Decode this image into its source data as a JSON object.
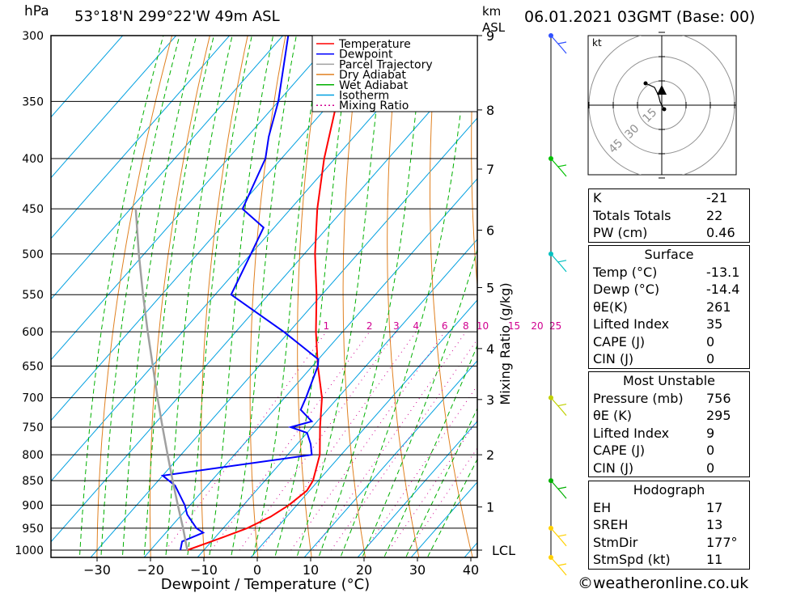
{
  "header": {
    "pressure_unit": "hPa",
    "station": "53°18'N 299°22'W 49m ASL",
    "km_unit": "km",
    "km_ref": "ASL",
    "datetime": "06.01.2021 03GMT (Base: 00)"
  },
  "footer": {
    "credit": "©weatheronline.co.uk"
  },
  "colors": {
    "temperature": "#ff0000",
    "dewpoint": "#0000ff",
    "parcel": "#a0a0a0",
    "dry_adiabat": "#e08020",
    "wet_adiabat": "#00b000",
    "isotherm": "#00a0e0",
    "mixing_ratio": "#d00090"
  },
  "chart_data": {
    "type": "line",
    "title": "",
    "xlabel": "Dewpoint / Temperature (°C)",
    "ylabel": "hPa",
    "y_scale": "log-pressure (skew-T)",
    "xlim": [
      -40,
      40
    ],
    "ylim": [
      1000,
      300
    ],
    "x_ticks": [
      "−30",
      "−20",
      "−10",
      "0",
      "10",
      "20",
      "30",
      "40"
    ],
    "pressure_levels": [
      300,
      350,
      400,
      450,
      500,
      550,
      600,
      650,
      700,
      750,
      800,
      850,
      900,
      950,
      1000
    ],
    "km_ticks": [
      {
        "label": "9",
        "p": 300
      },
      {
        "label": "8",
        "p": 357
      },
      {
        "label": "7",
        "p": 410
      },
      {
        "label": "6",
        "p": 473
      },
      {
        "label": "5",
        "p": 541
      },
      {
        "label": "4",
        "p": 624
      },
      {
        "label": "3",
        "p": 703
      },
      {
        "label": "2",
        "p": 800
      },
      {
        "label": "1",
        "p": 904
      },
      {
        "label": "LCL",
        "p": 1000
      }
    ],
    "mixing_ratio_axis_label": "Mixing Ratio (g/kg)",
    "mixing_ratio_labels": [
      "1",
      "2",
      "3",
      "4",
      "6",
      "8",
      "10",
      "15",
      "20",
      "25"
    ],
    "legend": {
      "placement": "top-right",
      "entries": [
        "Temperature",
        "Dewpoint",
        "Parcel Trajectory",
        "Dry Adiabat",
        "Wet Adiabat",
        "Isotherm",
        "Mixing Ratio"
      ]
    },
    "series": [
      {
        "name": "Temperature",
        "points": [
          [
            1000,
            -13.1
          ],
          [
            970,
            -8.5
          ],
          [
            950,
            -5.5
          ],
          [
            925,
            -3
          ],
          [
            900,
            -1.5
          ],
          [
            870,
            -0.5
          ],
          [
            850,
            -1
          ],
          [
            800,
            -4
          ],
          [
            750,
            -8.5
          ],
          [
            700,
            -13
          ],
          [
            650,
            -19
          ],
          [
            600,
            -25
          ],
          [
            550,
            -31
          ],
          [
            500,
            -38
          ],
          [
            450,
            -45
          ],
          [
            400,
            -52
          ],
          [
            350,
            -59
          ],
          [
            300,
            -66
          ]
        ]
      },
      {
        "name": "Dewpoint",
        "points": [
          [
            1000,
            -14.4
          ],
          [
            980,
            -15.5
          ],
          [
            960,
            -13
          ],
          [
            950,
            -15
          ],
          [
            920,
            -19
          ],
          [
            900,
            -21
          ],
          [
            860,
            -26
          ],
          [
            840,
            -30
          ],
          [
            800,
            -5.5
          ],
          [
            780,
            -7.5
          ],
          [
            760,
            -10
          ],
          [
            750,
            -14
          ],
          [
            740,
            -11
          ],
          [
            720,
            -15
          ],
          [
            700,
            -16
          ],
          [
            650,
            -19
          ],
          [
            640,
            -20
          ],
          [
            600,
            -31
          ],
          [
            550,
            -47
          ],
          [
            500,
            -50
          ],
          [
            470,
            -52
          ],
          [
            450,
            -59
          ],
          [
            400,
            -63
          ],
          [
            380,
            -66
          ],
          [
            350,
            -70
          ],
          [
            300,
            -79
          ]
        ]
      },
      {
        "name": "Parcel Trajectory",
        "points": [
          [
            1000,
            -13.1
          ],
          [
            950,
            -17.5
          ],
          [
            900,
            -22.3
          ],
          [
            850,
            -27.3
          ],
          [
            800,
            -32.5
          ],
          [
            750,
            -38
          ],
          [
            700,
            -43.8
          ],
          [
            650,
            -49.9
          ],
          [
            600,
            -56.5
          ],
          [
            550,
            -63.5
          ],
          [
            500,
            -71
          ],
          [
            450,
            -79
          ]
        ]
      }
    ],
    "wind_barbs": [
      {
        "p": 1000,
        "color": "#ffd000"
      },
      {
        "p": 950,
        "color": "#ffd000"
      },
      {
        "p": 850,
        "color": "#00b000"
      },
      {
        "p": 700,
        "color": "#c0d000"
      },
      {
        "p": 500,
        "color": "#00c0c0"
      },
      {
        "p": 400,
        "color": "#00c000"
      },
      {
        "p": 300,
        "color": "#3050ff"
      }
    ],
    "hodograph": {
      "unit": "kt",
      "ring_labels": [
        "15",
        "30",
        "45"
      ]
    }
  },
  "indices": {
    "box1": [
      {
        "k": "K",
        "v": "-21"
      },
      {
        "k": "Totals Totals",
        "v": "22"
      },
      {
        "k": "PW (cm)",
        "v": "0.46"
      }
    ],
    "surface": {
      "title": "Surface",
      "rows": [
        {
          "k": "Temp (°C)",
          "v": "-13.1"
        },
        {
          "k": "Dewp (°C)",
          "v": "-14.4"
        },
        {
          "k": "θE(K)",
          "v": "261"
        },
        {
          "k": "Lifted Index",
          "v": "35"
        },
        {
          "k": "CAPE (J)",
          "v": "0"
        },
        {
          "k": "CIN (J)",
          "v": "0"
        }
      ]
    },
    "most_unstable": {
      "title": "Most Unstable",
      "rows": [
        {
          "k": "Pressure (mb)",
          "v": "756"
        },
        {
          "k": "θE (K)",
          "v": "295"
        },
        {
          "k": "Lifted Index",
          "v": "9"
        },
        {
          "k": "CAPE (J)",
          "v": "0"
        },
        {
          "k": "CIN (J)",
          "v": "0"
        }
      ]
    },
    "hodograph_box": {
      "title": "Hodograph",
      "rows": [
        {
          "k": "EH",
          "v": "17"
        },
        {
          "k": "SREH",
          "v": "13"
        },
        {
          "k": "StmDir",
          "v": "177°"
        },
        {
          "k": "StmSpd (kt)",
          "v": "11"
        }
      ]
    }
  }
}
